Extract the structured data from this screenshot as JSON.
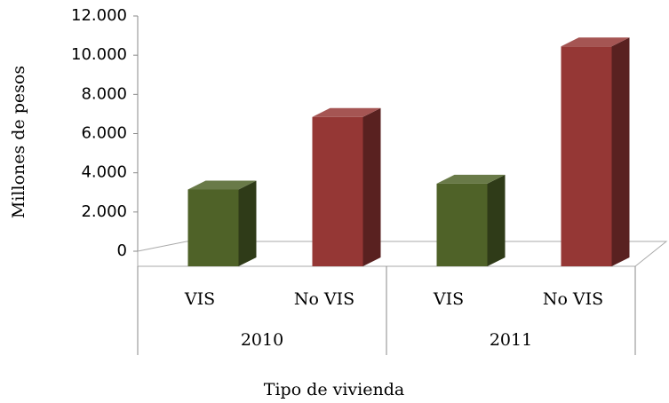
{
  "chart_data": {
    "type": "bar3d",
    "y_label": "Millones de pesos",
    "x_label": "Tipo de vivienda",
    "categories": [
      "VIS",
      "No VIS",
      "VIS",
      "No VIS"
    ],
    "groups": [
      "2010",
      "2011"
    ],
    "values": [
      3600,
      7300,
      3900,
      10900
    ],
    "colors": [
      "#4f6228",
      "#953735",
      "#4f6228",
      "#953735"
    ],
    "ylim": [
      0,
      12000
    ],
    "yticks": [
      0,
      {
        "value": 2000,
        "label": "2.000"
      },
      {
        "value": 4000,
        "label": "4.000"
      },
      {
        "value": 6000,
        "label": "6.000"
      },
      {
        "value": 8000,
        "label": "8.000"
      },
      {
        "value": 10000,
        "label": "10.000"
      },
      {
        "value": 12000,
        "label": "12.000"
      }
    ],
    "grid": false
  }
}
